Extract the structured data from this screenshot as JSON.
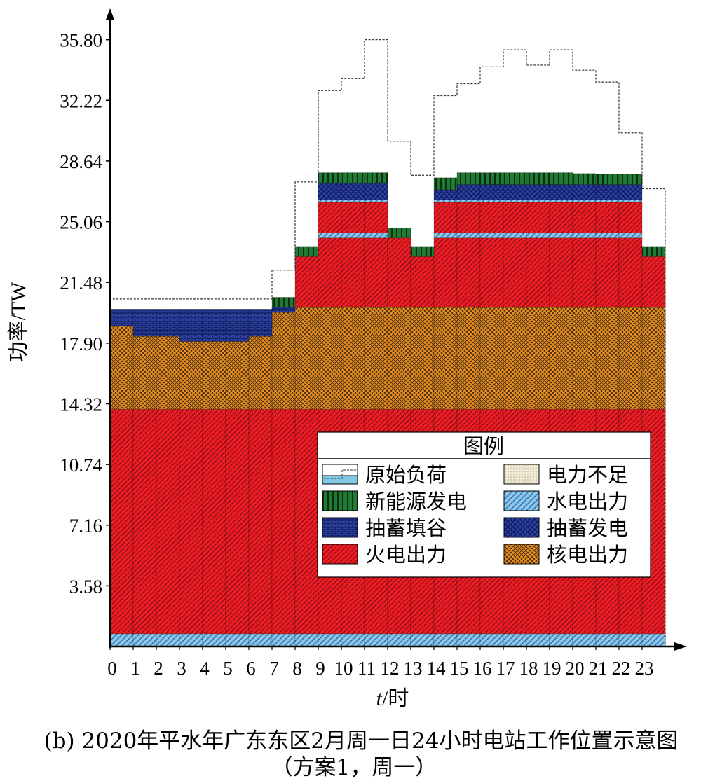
{
  "chart_data": {
    "type": "area",
    "caption": "(b) 2020年平水年广东东区2月周一日24小时电站工作位置示意图",
    "caption2": "（方案1，周一）",
    "xlabel_var": "t",
    "xlabel_unit": "/时",
    "ylabel": "功率/TW",
    "yticks": [
      "3.58",
      "7.16",
      "10.74",
      "14.32",
      "17.90",
      "21.48",
      "25.06",
      "28.64",
      "32.22",
      "35.80"
    ],
    "ylim": [
      0,
      36.9
    ],
    "x": [
      0,
      1,
      2,
      3,
      4,
      5,
      6,
      7,
      8,
      9,
      10,
      11,
      12,
      13,
      14,
      15,
      16,
      17,
      18,
      19,
      20,
      21,
      22,
      23
    ],
    "legend_title": "图例",
    "legend_placement": "center-right",
    "stack_series": [
      {
        "name": "水电出力",
        "key": "hydro",
        "values": [
          0.75,
          0.75,
          0.75,
          0.75,
          0.75,
          0.75,
          0.75,
          0.75,
          0.75,
          0.75,
          0.75,
          0.75,
          0.75,
          0.75,
          0.75,
          0.75,
          0.75,
          0.75,
          0.75,
          0.75,
          0.75,
          0.75,
          0.75,
          0.75
        ]
      },
      {
        "name": "火电出力",
        "key": "thermal",
        "values": [
          13.25,
          13.25,
          13.25,
          13.25,
          13.25,
          13.25,
          13.25,
          13.25,
          13.25,
          13.25,
          13.25,
          13.25,
          13.25,
          13.25,
          13.25,
          13.25,
          13.25,
          13.25,
          13.25,
          13.25,
          13.25,
          13.25,
          13.25,
          13.25
        ]
      },
      {
        "name": "核电出力",
        "key": "nuclear",
        "values": [
          4.9,
          4.3,
          4.3,
          4.0,
          4.0,
          4.0,
          4.3,
          6.0,
          6.0,
          6.0,
          6.0,
          6.0,
          6.0,
          6.0,
          6.0,
          6.0,
          6.0,
          6.0,
          6.0,
          6.0,
          6.0,
          6.0,
          6.0,
          6.0
        ]
      },
      {
        "name": "火电出力",
        "key": "thermal",
        "values": [
          0,
          0,
          0,
          0,
          0,
          0,
          0,
          0,
          3.0,
          4.1,
          4.1,
          4.1,
          4.1,
          3.0,
          4.1,
          4.1,
          4.1,
          4.1,
          4.1,
          4.1,
          4.1,
          4.1,
          4.1,
          3.0
        ]
      },
      {
        "name": "水电出力",
        "key": "hydro",
        "values": [
          0,
          0,
          0,
          0,
          0,
          0,
          0,
          0,
          0,
          0.3,
          0.3,
          0.3,
          0,
          0,
          0.3,
          0.3,
          0.3,
          0.3,
          0.3,
          0.3,
          0.3,
          0.3,
          0.3,
          0
        ]
      },
      {
        "name": "火电出力",
        "key": "thermal",
        "values": [
          0,
          0,
          0,
          0,
          0,
          0,
          0,
          0,
          0,
          0.3,
          0.3,
          0.3,
          0,
          0,
          0.3,
          0.3,
          0.3,
          0.3,
          0.3,
          0.3,
          0.3,
          0.3,
          0.3,
          0
        ]
      },
      {
        "name": "火电出力",
        "key": "thermal",
        "values": [
          0,
          0,
          0,
          0,
          0,
          0,
          0,
          0,
          0,
          1.5,
          1.5,
          1.5,
          0,
          0,
          1.5,
          1.5,
          1.5,
          1.5,
          1.5,
          1.5,
          1.5,
          1.5,
          1.5,
          0
        ]
      },
      {
        "name": "水电出力",
        "key": "hydro",
        "values": [
          0,
          0,
          0,
          0,
          0,
          0,
          0,
          0,
          0,
          0.15,
          0.15,
          0.15,
          0,
          0,
          0.15,
          0.15,
          0.15,
          0.15,
          0.15,
          0.15,
          0.15,
          0.15,
          0.15,
          0
        ]
      },
      {
        "name": "抽蓄发电",
        "key": "pumpgen",
        "values": [
          0,
          0,
          0,
          0,
          0,
          0,
          0,
          0,
          0,
          1.0,
          1.0,
          1.0,
          0,
          0,
          0.6,
          0.9,
          0.9,
          0.9,
          0.9,
          0.9,
          0.9,
          0.9,
          0.9,
          0
        ]
      },
      {
        "name": "新能源发电",
        "key": "renew",
        "values": [
          0.6,
          0.6,
          0.6,
          0.6,
          0.6,
          0.6,
          0.6,
          0.6,
          0.6,
          0.6,
          0.6,
          0.6,
          0.6,
          0.6,
          0.7,
          0.7,
          0.7,
          0.7,
          0.7,
          0.7,
          0.65,
          0.6,
          0.6,
          0.6
        ]
      }
    ],
    "pump_fill": {
      "name": "抽蓄填谷",
      "top": [
        19.9,
        19.9,
        19.9,
        19.9,
        19.9,
        19.9,
        19.9,
        20.0,
        0,
        0,
        0,
        0,
        0,
        0,
        0,
        0,
        0,
        0,
        0,
        0,
        0,
        0,
        0,
        0
      ],
      "bottom": [
        18.9,
        18.3,
        18.3,
        18.0,
        18.0,
        18.0,
        18.3,
        19.7,
        0,
        0,
        0,
        0,
        0,
        0,
        0,
        0,
        0,
        0,
        0,
        0,
        0,
        0,
        0,
        0
      ]
    },
    "original_load": {
      "name": "原始负荷",
      "values": [
        20.5,
        20.5,
        20.5,
        20.5,
        20.5,
        20.5,
        20.5,
        22.2,
        27.4,
        32.8,
        33.5,
        35.8,
        29.8,
        27.8,
        32.5,
        33.2,
        34.2,
        35.2,
        34.3,
        35.2,
        34.0,
        33.3,
        30.3,
        27.0
      ]
    },
    "legend": [
      {
        "label": "原始负荷",
        "key": "orig"
      },
      {
        "label": "电力不足",
        "key": "shortage"
      },
      {
        "label": "新能源发电",
        "key": "renew"
      },
      {
        "label": "水电出力",
        "key": "hydro"
      },
      {
        "label": "抽蓄填谷",
        "key": "pumpfill"
      },
      {
        "label": "抽蓄发电",
        "key": "pumpgen"
      },
      {
        "label": "火电出力",
        "key": "thermal"
      },
      {
        "label": "核电出力",
        "key": "nuclear"
      }
    ],
    "colors": {
      "thermal": "#ee1c25",
      "hydro": "#8ec5ea",
      "nuclear": "#e8901e",
      "renew": "#1f7a34",
      "pumpfill": "#2a3f9e",
      "pumpgen": "#2b3fa6",
      "shortage": "#efe8d3",
      "orig": "#7fc9e4"
    }
  }
}
